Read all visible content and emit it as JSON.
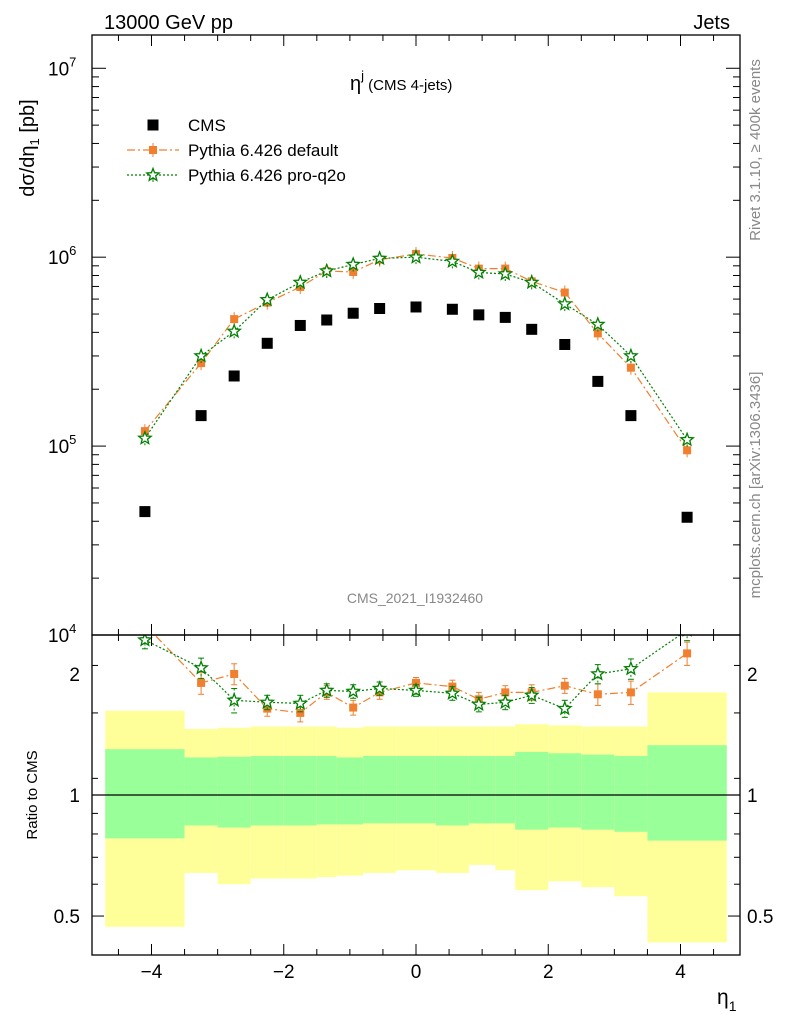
{
  "header": {
    "left": "13000 GeV pp",
    "right": "Jets"
  },
  "side": {
    "rivet": "Rivet 3.1.10, ≥ 400k events",
    "mcplots": "mcplots.cern.ch [arXiv:1306.3436]"
  },
  "analysis_id": "CMS_2021_I1932460",
  "colors": {
    "cms": "#000000",
    "default": "#f08030",
    "proq2o": "#008000",
    "band_inner": "#99ff99",
    "band_outer": "#ffff99"
  },
  "chart_data": [
    {
      "type": "scatter",
      "panel": "main",
      "title": "ηj (CMS 4-jets)",
      "title_main": "η",
      "title_sup": "j",
      "title_rest": " (CMS 4-jets)",
      "ylabel": "dσ/dη1 [pb]",
      "ylabel_prefix": "dσ/dη",
      "ylabel_sub": "1",
      "ylabel_suffix": " [pb]",
      "yscale": "log",
      "ylim": [
        10000,
        15000000
      ],
      "xlim": [
        -4.9,
        4.9
      ],
      "y_tick_labels": [
        {
          "base": "10",
          "exp": "4"
        },
        {
          "base": "10",
          "exp": "5"
        },
        {
          "base": "10",
          "exp": "6"
        },
        {
          "base": "10",
          "exp": "7"
        }
      ],
      "x": [
        -4.1,
        -3.25,
        -2.75,
        -2.25,
        -1.75,
        -1.35,
        -0.95,
        -0.55,
        0.0,
        0.55,
        0.95,
        1.35,
        1.75,
        2.25,
        2.75,
        3.25,
        4.1
      ],
      "legend_position": "top-left",
      "series": [
        {
          "name": "CMS",
          "key": "cms",
          "values": [
            45000,
            145000,
            235000,
            350000,
            435000,
            465000,
            505000,
            535000,
            545000,
            530000,
            495000,
            480000,
            415000,
            345000,
            220000,
            145000,
            42000
          ]
        },
        {
          "name": "Pythia 6.426 default",
          "key": "default",
          "values": [
            120000,
            275000,
            470000,
            575000,
            695000,
            845000,
            835000,
            970000,
            1040000,
            990000,
            870000,
            870000,
            745000,
            650000,
            395000,
            260000,
            95000
          ]
        },
        {
          "name": "Pythia 6.426 pro-q2o",
          "key": "proq2o",
          "values": [
            110000,
            300000,
            405000,
            595000,
            735000,
            845000,
            915000,
            985000,
            1000000,
            950000,
            830000,
            815000,
            735000,
            565000,
            440000,
            300000,
            108000
          ]
        }
      ]
    },
    {
      "type": "scatter",
      "panel": "ratio",
      "ylabel": "Ratio to CMS",
      "yscale": "log",
      "ylim": [
        0.4,
        2.5
      ],
      "xlabel": "η1",
      "xlabel_main": "η",
      "xlabel_sub": "1",
      "x_ticks": [
        -4,
        -2,
        0,
        2,
        4
      ],
      "x_tick_labels": [
        "−4",
        "−2",
        "0",
        "2",
        "4"
      ],
      "y_tick_labels": [
        "0.5",
        "1",
        "2"
      ],
      "bins": [
        -4.7,
        -3.5,
        -3.0,
        -2.5,
        -2.0,
        -1.5,
        -1.2,
        -0.8,
        -0.3,
        0.3,
        0.8,
        1.2,
        1.5,
        2.0,
        2.5,
        3.0,
        3.5,
        4.7
      ],
      "band_inner_lo": [
        0.78,
        0.84,
        0.83,
        0.84,
        0.84,
        0.845,
        0.845,
        0.85,
        0.85,
        0.84,
        0.85,
        0.85,
        0.82,
        0.83,
        0.82,
        0.81,
        0.77
      ],
      "band_inner_hi": [
        1.3,
        1.24,
        1.245,
        1.25,
        1.25,
        1.25,
        1.24,
        1.25,
        1.25,
        1.25,
        1.25,
        1.25,
        1.28,
        1.27,
        1.26,
        1.25,
        1.33
      ],
      "band_outer_lo": [
        0.47,
        0.64,
        0.6,
        0.62,
        0.62,
        0.625,
        0.63,
        0.64,
        0.65,
        0.64,
        0.67,
        0.65,
        0.58,
        0.61,
        0.59,
        0.56,
        0.43
      ],
      "band_outer_hi": [
        1.62,
        1.46,
        1.47,
        1.48,
        1.48,
        1.48,
        1.47,
        1.48,
        1.48,
        1.48,
        1.48,
        1.48,
        1.5,
        1.49,
        1.48,
        1.48,
        1.8
      ],
      "series": [
        {
          "name": "Pythia 6.426 default",
          "key": "default",
          "values": [
            2.65,
            1.9,
            2.0,
            1.64,
            1.6,
            1.8,
            1.65,
            1.8,
            1.9,
            1.86,
            1.73,
            1.8,
            1.8,
            1.87,
            1.78,
            1.8,
            2.25
          ],
          "errors": [
            0.12,
            0.12,
            0.12,
            0.07,
            0.08,
            0.07,
            0.07,
            0.07,
            0.06,
            0.07,
            0.07,
            0.07,
            0.08,
            0.08,
            0.11,
            0.12,
            0.15
          ]
        },
        {
          "name": "Pythia 6.426 pro-q2o",
          "key": "proq2o",
          "values": [
            2.43,
            2.07,
            1.72,
            1.7,
            1.69,
            1.82,
            1.81,
            1.84,
            1.82,
            1.79,
            1.68,
            1.7,
            1.77,
            1.64,
            2.0,
            2.06,
            2.57
          ],
          "errors": [
            0.12,
            0.12,
            0.12,
            0.07,
            0.08,
            0.07,
            0.07,
            0.07,
            0.06,
            0.07,
            0.07,
            0.07,
            0.08,
            0.08,
            0.11,
            0.12,
            0.15
          ]
        }
      ]
    }
  ]
}
